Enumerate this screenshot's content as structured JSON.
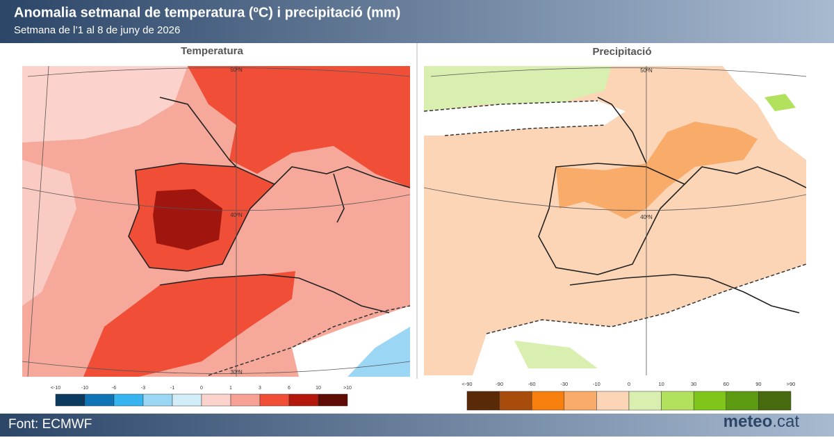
{
  "header": {
    "title": "Anomalia setmanal de temperatura (ºC) i precipitació (mm)",
    "subtitle": "Setmana de l’1 al 8 de juny de 2026"
  },
  "panels": [
    {
      "title": "Temperatura",
      "map_labels": [
        "50ºN",
        "40ºN",
        "30ºN"
      ],
      "legend": {
        "labels": [
          "<-10",
          "-10",
          "-6",
          "-3",
          "-1",
          "0",
          "1",
          "3",
          "6",
          "10",
          ">10"
        ],
        "colors": [
          "#0b3a5e",
          "#0f74b5",
          "#35b4ef",
          "#9bd7f5",
          "#d2ecf8",
          "#fbd3cc",
          "#f6a193",
          "#f04e37",
          "#b4170c",
          "#5e0a05"
        ]
      }
    },
    {
      "title": "Precipitació",
      "map_labels": [
        "50ºN",
        "40ºN"
      ],
      "legend": {
        "labels": [
          "<-90",
          "-90",
          "-60",
          "-30",
          "-10",
          "0",
          "10",
          "30",
          "60",
          "90",
          ">90"
        ],
        "colors": [
          "#5a2a08",
          "#a84c0c",
          "#f77f0e",
          "#f9ab6a",
          "#fbd5b5",
          "#d8efb0",
          "#b1e15d",
          "#80c61a",
          "#5c9a12",
          "#476a0e"
        ]
      }
    }
  ],
  "footer": {
    "source": "Font: ECMWF",
    "logo_main": "meteo",
    "logo_suffix": ".cat"
  }
}
